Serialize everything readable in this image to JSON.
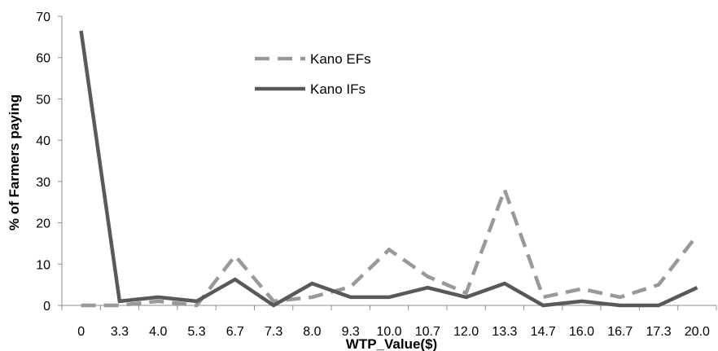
{
  "chart_data": {
    "type": "line",
    "title": "",
    "xlabel": "WTP_Value($)",
    "ylabel": "% of Farmers paying",
    "ylim": [
      0,
      70
    ],
    "yticks": [
      0,
      10,
      20,
      30,
      40,
      50,
      60,
      70
    ],
    "grid": false,
    "legend_position": "top-center",
    "categories": [
      "0",
      "3.3",
      "4.0",
      "5.3",
      "6.7",
      "7.3",
      "8.0",
      "9.3",
      "10.0",
      "10.7",
      "12.0",
      "13.3",
      "14.7",
      "16.0",
      "16.7",
      "17.3",
      "20.0"
    ],
    "series": [
      {
        "name": "Kano EFs",
        "style": "dashed",
        "color": "#999999",
        "values": [
          0,
          0,
          1,
          0,
          12,
          1,
          2,
          4.5,
          13.5,
          7,
          3,
          28,
          2,
          4,
          2,
          5,
          17
        ]
      },
      {
        "name": "Kano IFs",
        "style": "solid",
        "color": "#595959",
        "values": [
          66.5,
          1,
          2,
          1,
          6.3,
          0,
          5.3,
          2,
          2,
          4.3,
          2,
          5.3,
          0,
          1,
          0,
          0,
          4.3
        ]
      }
    ]
  }
}
